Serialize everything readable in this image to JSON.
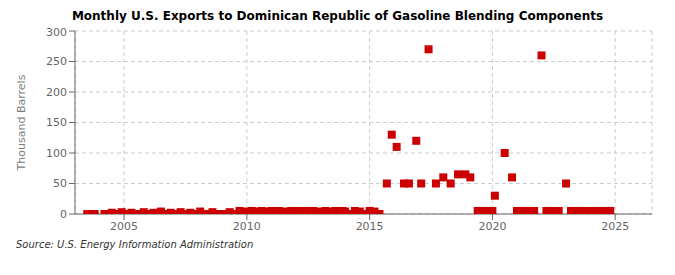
{
  "chart_data": {
    "type": "scatter",
    "title": "Monthly U.S. Exports to Dominican Republic of Gasoline Blending Components",
    "ylabel": "Thousand Barrels",
    "annotations": [
      "Source: U.S. Energy Information Administration"
    ],
    "color": "#cc0000",
    "marker": "square",
    "x": [
      2003.5,
      2003.8,
      2004.2,
      2004.5,
      2004.7,
      2004.9,
      2005.0,
      2005.3,
      2005.6,
      2005.8,
      2006.0,
      2006.2,
      2006.5,
      2006.7,
      2006.9,
      2007.1,
      2007.3,
      2007.5,
      2007.7,
      2007.9,
      2008.1,
      2008.4,
      2008.6,
      2008.9,
      2009.1,
      2009.3,
      2009.5,
      2009.7,
      2009.9,
      2010.0,
      2010.2,
      2010.3,
      2010.5,
      2010.6,
      2010.8,
      2011.0,
      2011.1,
      2011.3,
      2011.5,
      2011.6,
      2011.8,
      2011.9,
      2012.1,
      2012.2,
      2012.4,
      2012.6,
      2012.7,
      2012.9,
      2013.0,
      2013.2,
      2013.4,
      2013.6,
      2013.7,
      2013.9,
      2014.0,
      2014.2,
      2014.4,
      2014.6,
      2014.8,
      2015.0,
      2015.2,
      2015.4,
      2015.7,
      2015.9,
      2016.1,
      2016.4,
      2016.6,
      2016.9,
      2017.1,
      2017.4,
      2017.7,
      2018.0,
      2018.3,
      2018.6,
      2018.9,
      2019.1,
      2019.4,
      2019.6,
      2019.9,
      2020.0,
      2020.1,
      2020.5,
      2020.8,
      2021.0,
      2021.2,
      2021.4,
      2021.7,
      2022.0,
      2022.2,
      2022.4,
      2022.7,
      2023.0,
      2023.2,
      2023.5,
      2023.7,
      2024.0,
      2024.2,
      2024.4,
      2024.6,
      2024.8
    ],
    "values": [
      0,
      0,
      0,
      2,
      0,
      3,
      0,
      2,
      0,
      3,
      0,
      2,
      4,
      0,
      2,
      0,
      3,
      0,
      2,
      0,
      4,
      0,
      3,
      0,
      0,
      3,
      0,
      5,
      4,
      0,
      5,
      4,
      0,
      5,
      4,
      5,
      0,
      5,
      4,
      0,
      5,
      3,
      5,
      4,
      5,
      0,
      5,
      4,
      0,
      5,
      4,
      5,
      0,
      5,
      4,
      0,
      5,
      4,
      0,
      5,
      4,
      0,
      50,
      130,
      110,
      50,
      50,
      120,
      50,
      270,
      50,
      60,
      50,
      65,
      65,
      60,
      5,
      5,
      5,
      5,
      30,
      100,
      60,
      5,
      5,
      5,
      5,
      260,
      5,
      5,
      5,
      50,
      5,
      5,
      5,
      5,
      5,
      5,
      5,
      5
    ],
    "xlim": [
      2003.0,
      2026.5
    ],
    "ylim": [
      0,
      300
    ],
    "xticks": [
      2005,
      2010,
      2015,
      2020,
      2025
    ],
    "yticks": [
      0,
      50,
      100,
      150,
      200,
      250,
      300
    ],
    "grid": true
  }
}
